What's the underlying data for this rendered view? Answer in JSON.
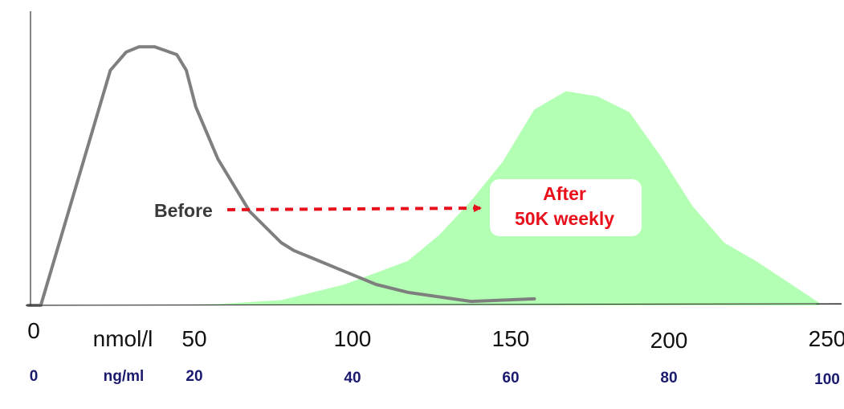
{
  "chart_data": {
    "type": "area",
    "title": "",
    "xlabel": "",
    "ylabel": "",
    "x_unit_primary": "nmol/l",
    "x_unit_secondary": "ng/ml",
    "xlim": [
      0,
      250
    ],
    "ylim": [
      0,
      100
    ],
    "grid": false,
    "x_ticks_primary": [
      {
        "value": 0,
        "label": "0"
      },
      {
        "value": 50,
        "label": "50"
      },
      {
        "value": 100,
        "label": "100"
      },
      {
        "value": 150,
        "label": "150"
      },
      {
        "value": 200,
        "label": "200"
      },
      {
        "value": 250,
        "label": "250"
      }
    ],
    "x_ticks_secondary": [
      {
        "value": 0,
        "label": "0"
      },
      {
        "value": 50,
        "label": "20"
      },
      {
        "value": 100,
        "label": "40"
      },
      {
        "value": 150,
        "label": "60"
      },
      {
        "value": 200,
        "label": "80"
      },
      {
        "value": 250,
        "label": "100"
      }
    ],
    "series": [
      {
        "name": "Before",
        "style": "line",
        "color": "#7f7f7f",
        "x": [
          0,
          4,
          26,
          31,
          35,
          40,
          47,
          50,
          53,
          60,
          70,
          80,
          84,
          90,
          100,
          110,
          120,
          140,
          150,
          160
        ],
        "y": [
          0,
          0,
          90,
          97,
          99,
          99,
          96,
          90,
          76,
          56,
          36,
          24,
          21,
          18,
          13,
          8,
          5,
          1.5,
          2,
          2.5
        ]
      },
      {
        "name": "After 50K weekly",
        "style": "area",
        "color": "#b3ffb3",
        "x": [
          30,
          60,
          80,
          100,
          120,
          130,
          140,
          150,
          160,
          170,
          180,
          190,
          200,
          210,
          220,
          230,
          240,
          250
        ],
        "y": [
          0,
          0.5,
          2,
          8,
          17,
          27,
          40,
          55,
          75,
          82,
          80,
          74,
          57,
          38,
          24,
          17,
          9,
          1
        ]
      }
    ],
    "annotations": {
      "before_label": "Before",
      "after_label_line1": "After",
      "after_label_line2": "50K weekly"
    },
    "colors": {
      "arrow": "#e8101a",
      "axis": "#333333",
      "after_box": "#ffffff"
    }
  }
}
